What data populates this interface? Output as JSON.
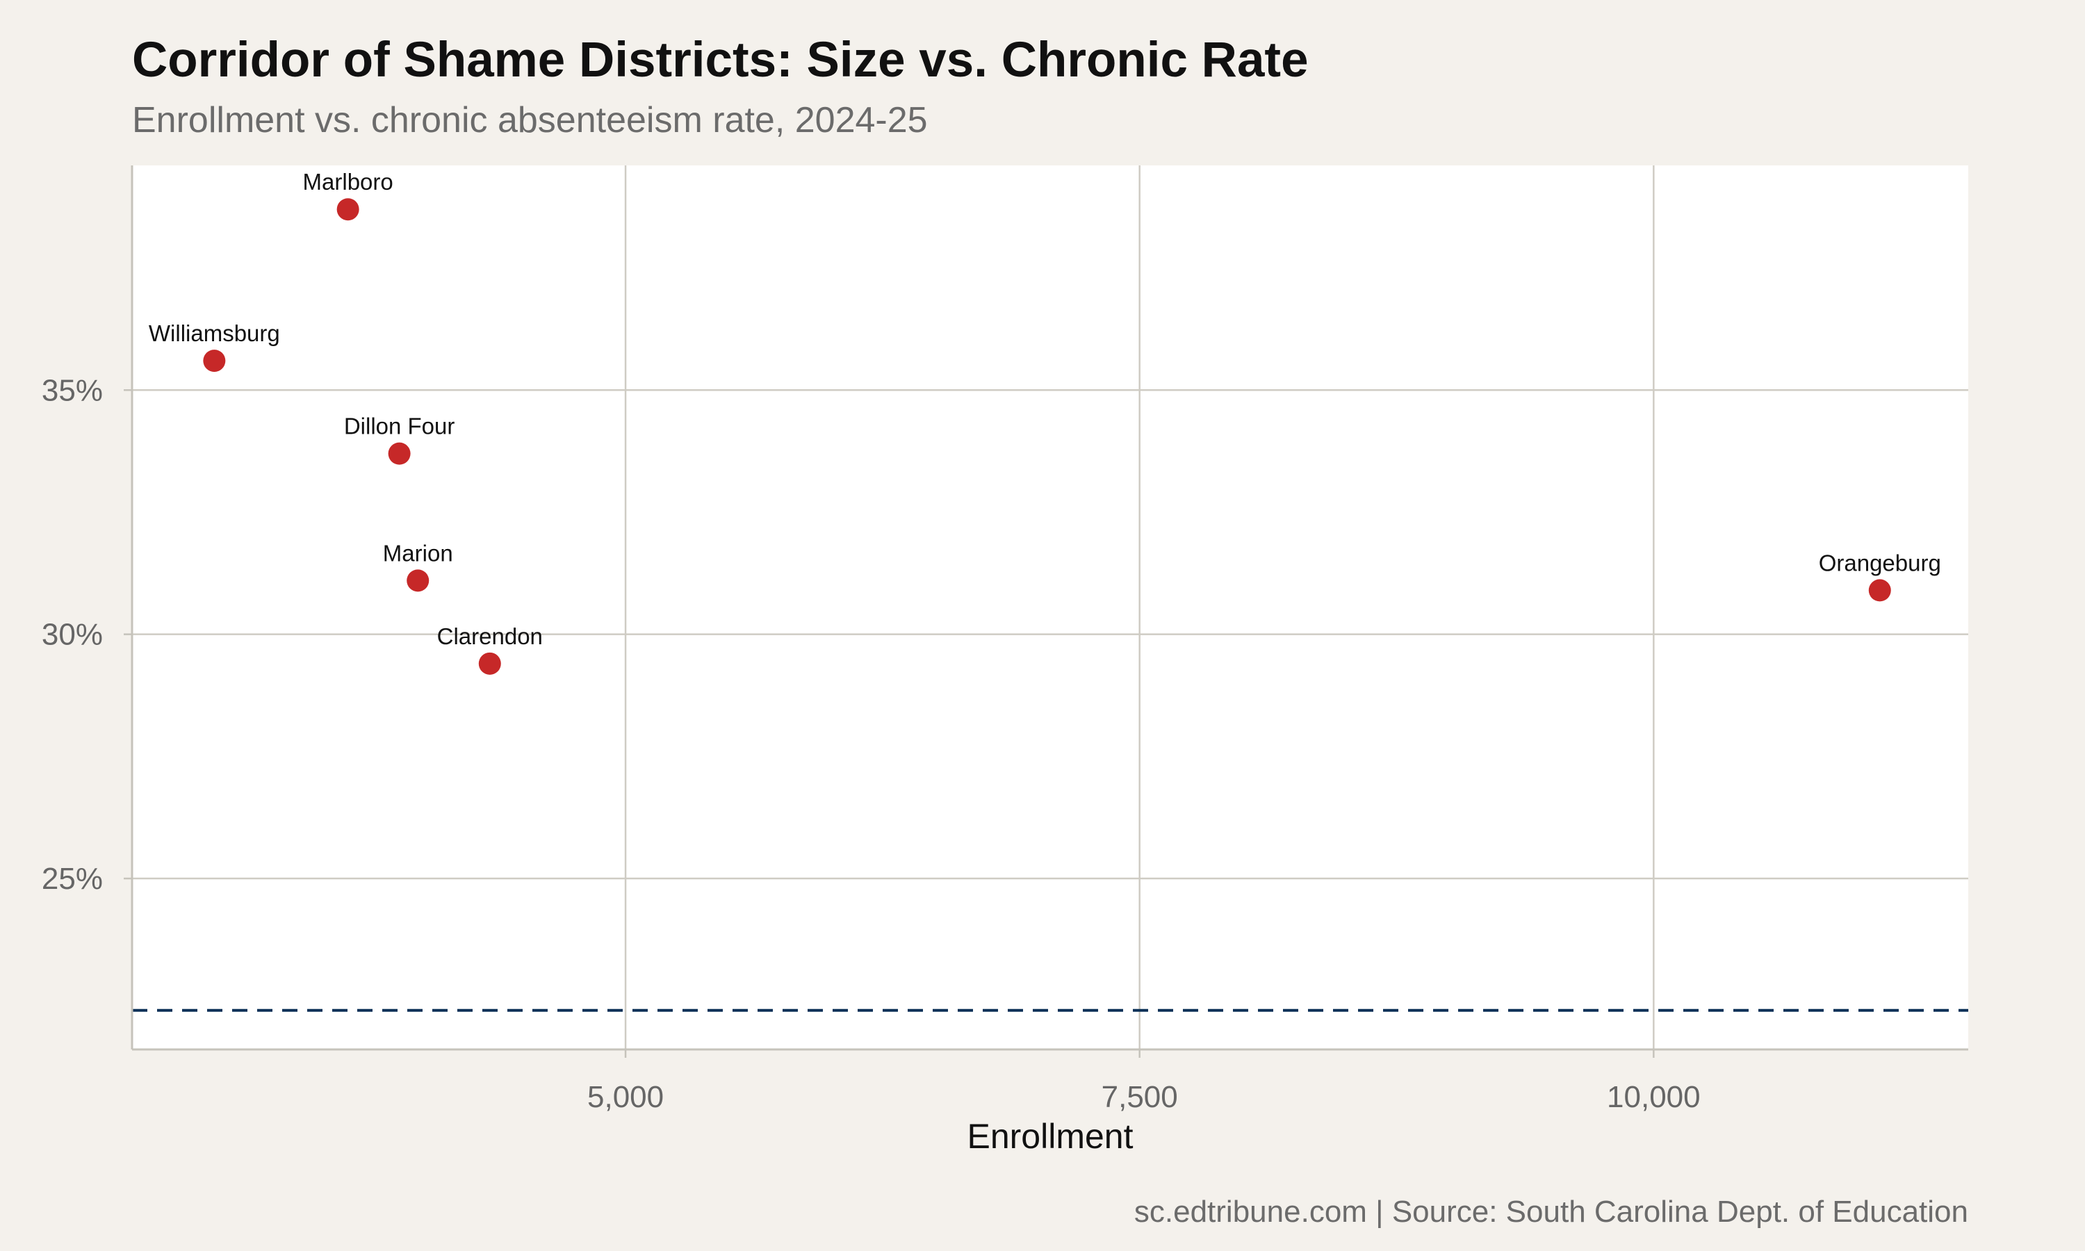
{
  "chart_data": {
    "type": "scatter",
    "title": "Corridor of Shame Districts: Size vs. Chronic Rate",
    "subtitle": "Enrollment vs. chronic absenteeism rate, 2024-25",
    "xlabel": "Enrollment",
    "ylabel": "",
    "caption": "sc.edtribune.com | Source: South Carolina Dept. of Education",
    "xlim": [
      2600,
      11530
    ],
    "ylim": [
      21.5,
      39.6
    ],
    "xticks": [
      {
        "value": 5000,
        "label": "5,000"
      },
      {
        "value": 7500,
        "label": "7,500"
      },
      {
        "value": 10000,
        "label": "10,000"
      }
    ],
    "yticks": [
      {
        "value": 25,
        "label": "25%"
      },
      {
        "value": 30,
        "label": "30%"
      },
      {
        "value": 35,
        "label": "35%"
      }
    ],
    "reference_line": {
      "y": 22.3,
      "style": "dashed",
      "color": "#0b3057"
    },
    "point_color": "#c62828",
    "grid": true,
    "points": [
      {
        "label": "Marlboro",
        "x": 3650,
        "y": 38.7
      },
      {
        "label": "Williamsburg",
        "x": 3000,
        "y": 35.6
      },
      {
        "label": "Dillon Four",
        "x": 3900,
        "y": 33.7
      },
      {
        "label": "Marion",
        "x": 3990,
        "y": 31.1
      },
      {
        "label": "Clarendon",
        "x": 4340,
        "y": 29.4
      },
      {
        "label": "Orangeburg",
        "x": 11100,
        "y": 30.9
      }
    ]
  }
}
